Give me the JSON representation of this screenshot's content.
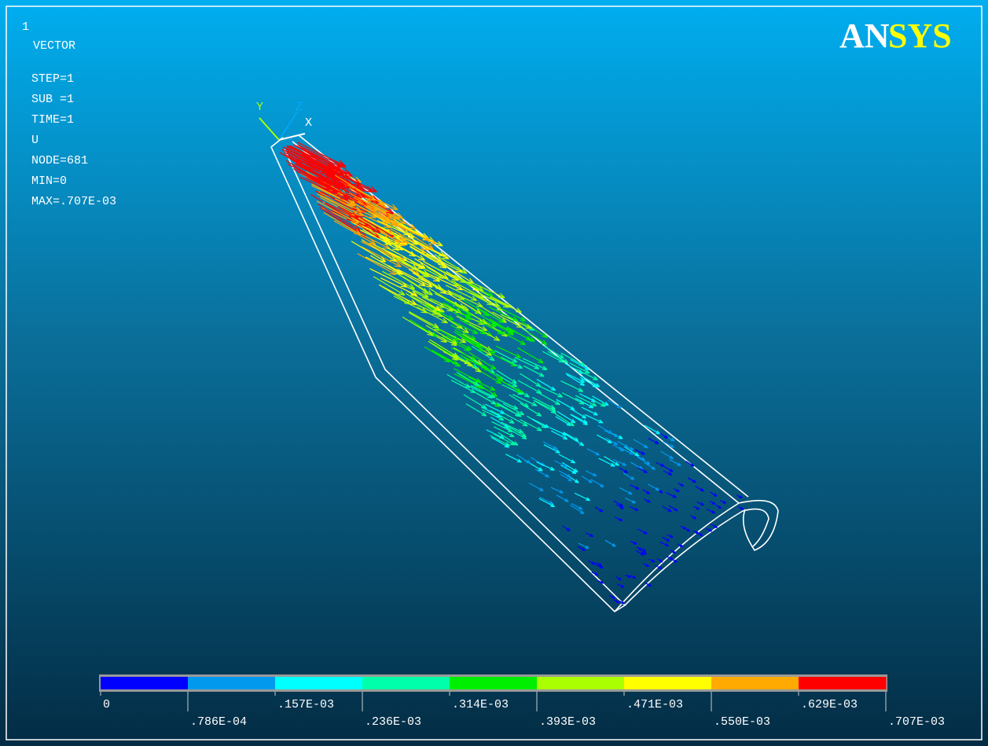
{
  "window_number": "1",
  "info": [
    "VECTOR",
    "STEP=1",
    "SUB =1",
    "TIME=1",
    "U",
    "NODE=681",
    "MIN=0",
    "MAX=.707E-03"
  ],
  "logo": [
    "AN",
    "SYS"
  ],
  "axes": {
    "y": "Y",
    "z": "Z",
    "x": "X"
  },
  "legend": {
    "colors": [
      "#0000ff",
      "#0099ee",
      "#00ffff",
      "#00ffaa",
      "#00ee00",
      "#aaff00",
      "#ffff00",
      "#ffaa00",
      "#ff0000"
    ],
    "labels": [
      "0",
      ".786E-04",
      ".157E-03",
      ".236E-03",
      ".314E-03",
      ".393E-03",
      ".471E-03",
      ".550E-03",
      ".629E-03",
      ".707E-03"
    ]
  }
}
